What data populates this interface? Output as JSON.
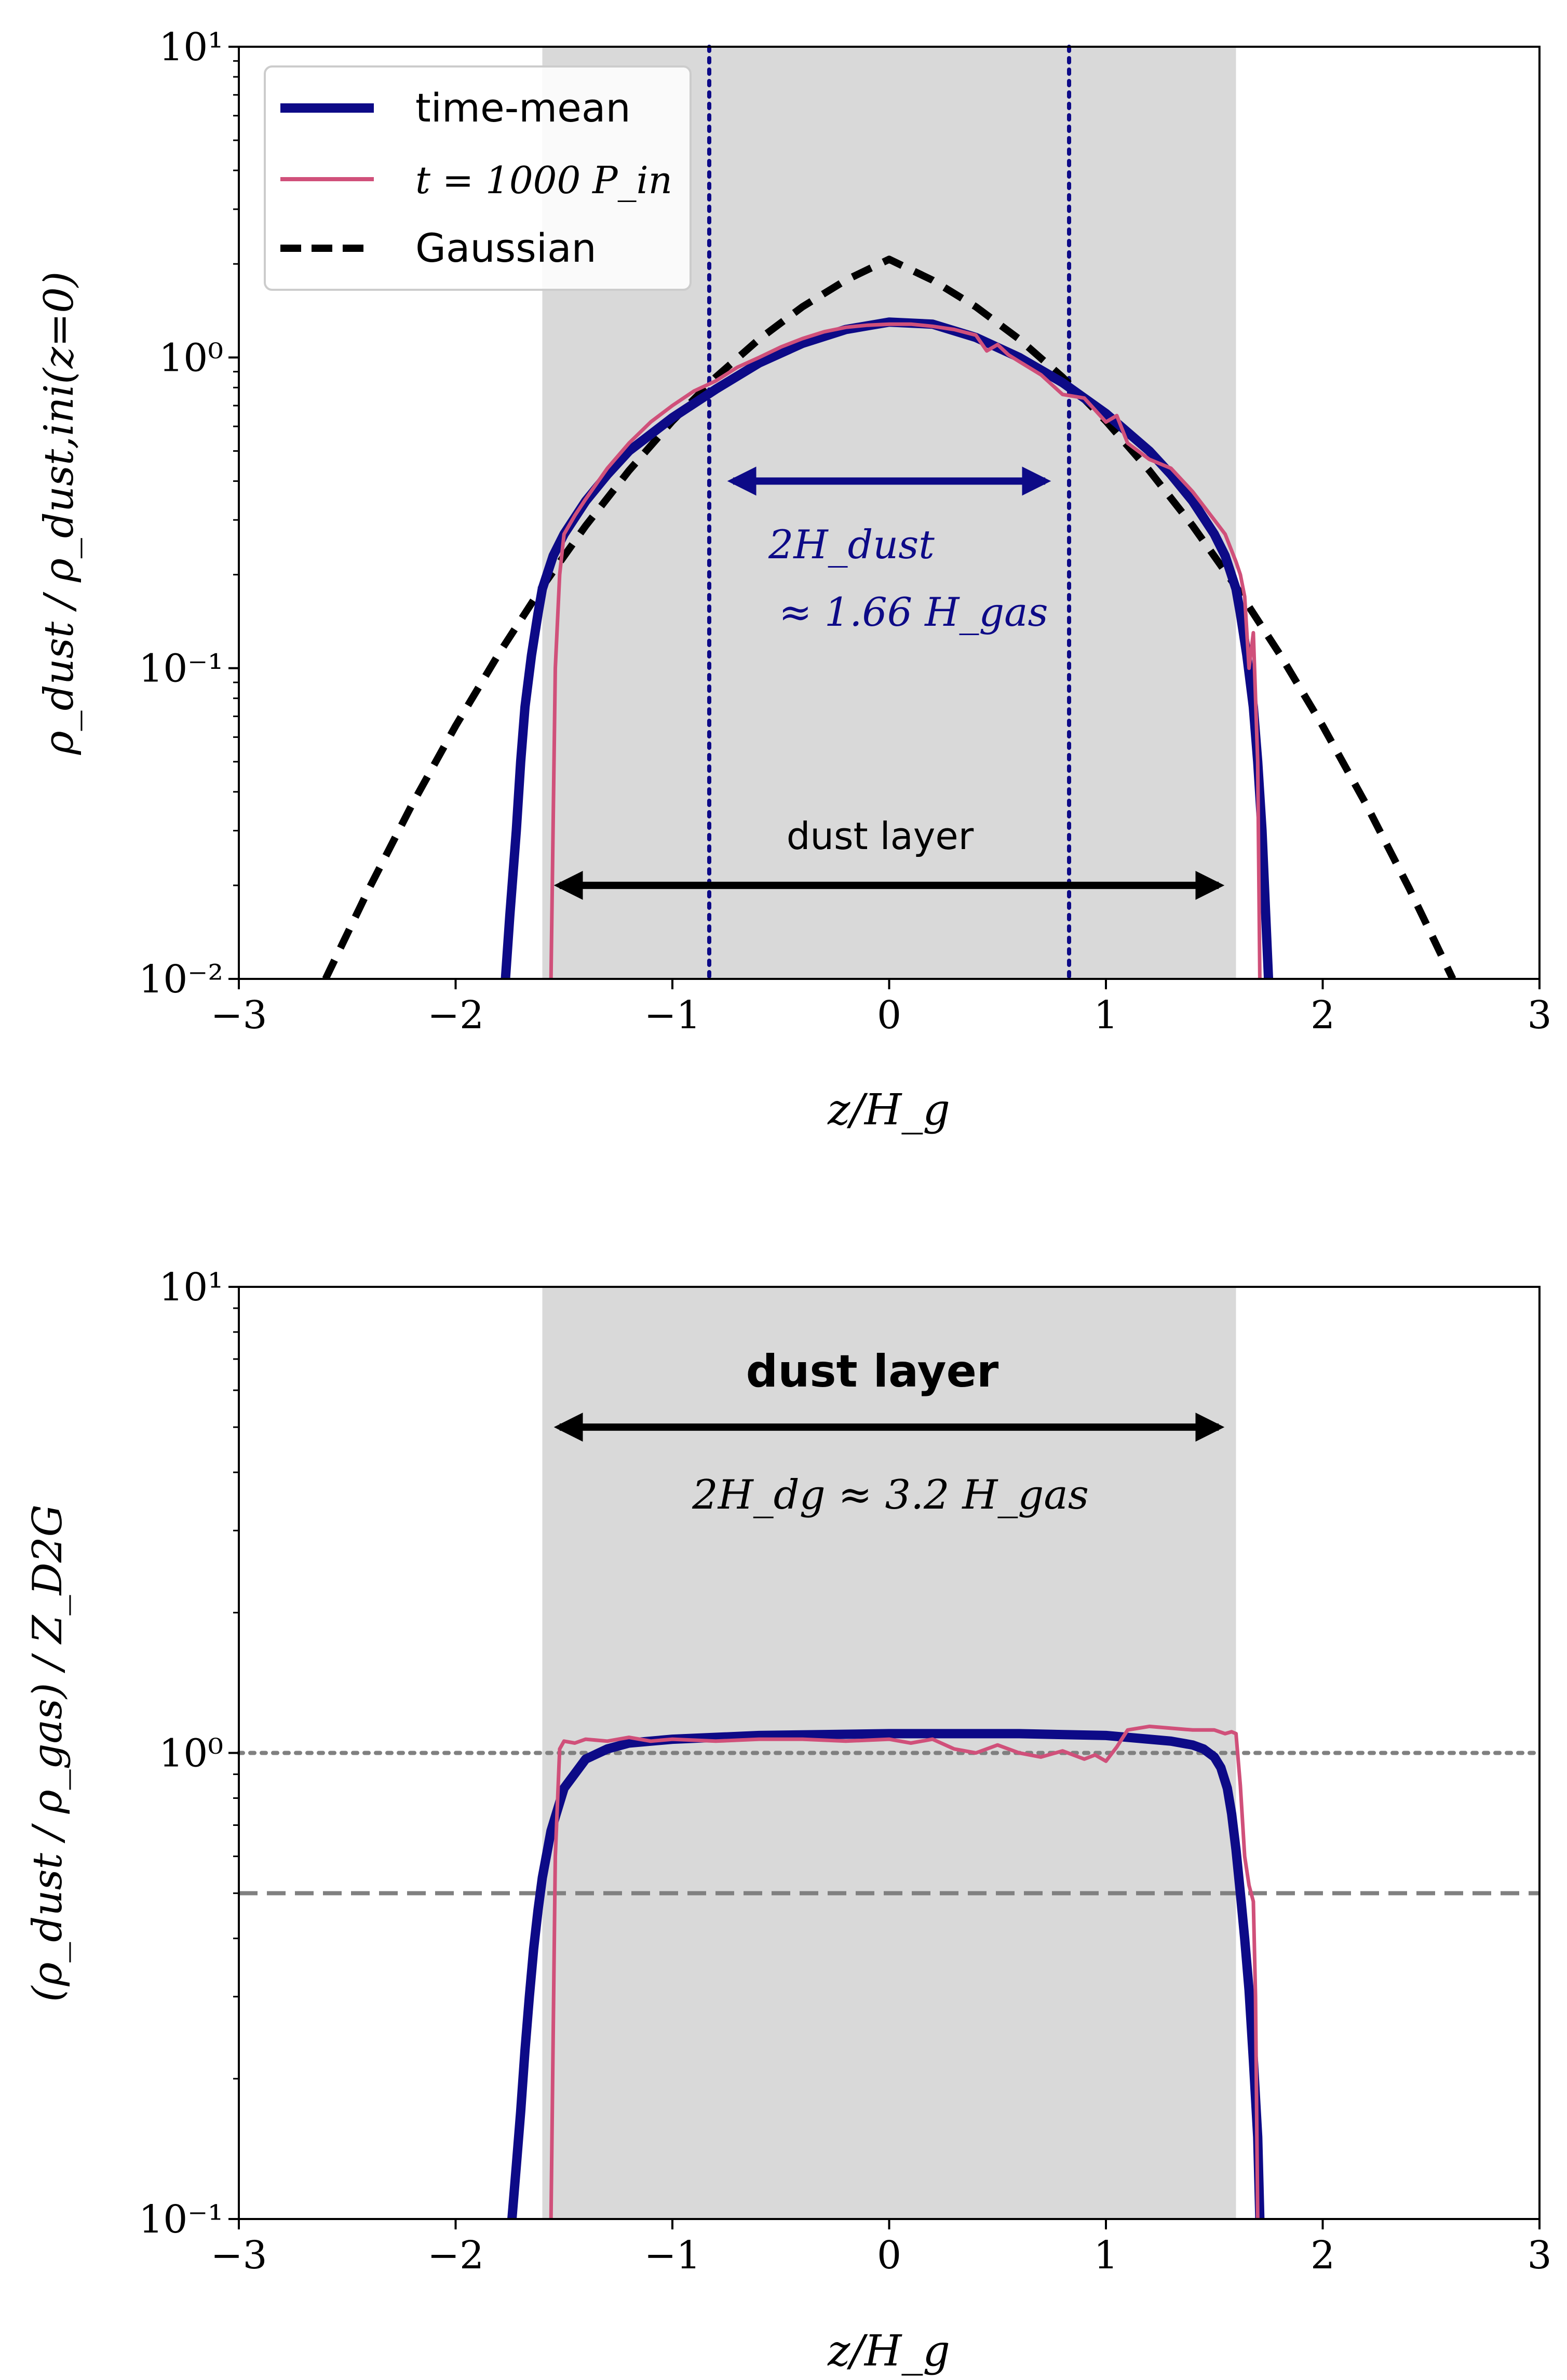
{
  "colors": {
    "time_mean": "#0d0a87",
    "snapshot": "#d0507a",
    "gaussian": "#000000",
    "dust_layer_fill": "#d9d9d9",
    "ref_line": "#808080"
  },
  "chart_data": [
    {
      "type": "line",
      "panel": "top",
      "xlabel": "z/H_g",
      "ylabel": "ρ_dust / ρ_dust,ini(z=0)",
      "xlim": [
        -3,
        3
      ],
      "ylim": [
        0.01,
        10
      ],
      "yscale": "log",
      "xticks": [
        -3,
        -2,
        -1,
        0,
        1,
        2,
        3
      ],
      "xtick_labels": [
        "−3",
        "−2",
        "−1",
        "0",
        "1",
        "2",
        "3"
      ],
      "yticks": [
        0.01,
        0.1,
        1,
        10
      ],
      "ytick_labels": [
        "10⁻²",
        "10⁻¹",
        "10⁰",
        "10¹"
      ],
      "legend_position": "top-left",
      "legend": [
        "time-mean",
        "t = 1000 P_in",
        "Gaussian"
      ],
      "shaded_region": [
        -1.6,
        1.6
      ],
      "vlines": [
        -0.83,
        0.83
      ],
      "annotations": {
        "h_dust_line1": "2H_dust",
        "h_dust_line2": "≈ 1.66 H_gas",
        "dust_layer": "dust layer"
      },
      "series": [
        {
          "name": "time-mean",
          "x": [
            -1.77,
            -1.75,
            -1.72,
            -1.7,
            -1.68,
            -1.65,
            -1.62,
            -1.6,
            -1.55,
            -1.5,
            -1.4,
            -1.3,
            -1.2,
            -1.0,
            -0.8,
            -0.6,
            -0.4,
            -0.2,
            0.0,
            0.2,
            0.4,
            0.6,
            0.8,
            1.0,
            1.2,
            1.3,
            1.4,
            1.5,
            1.55,
            1.6,
            1.62,
            1.65,
            1.68,
            1.7,
            1.72,
            1.75
          ],
          "y": [
            0.01,
            0.016,
            0.03,
            0.05,
            0.075,
            0.11,
            0.15,
            0.18,
            0.23,
            0.27,
            0.345,
            0.42,
            0.5,
            0.64,
            0.79,
            0.96,
            1.11,
            1.23,
            1.3,
            1.28,
            1.16,
            1.0,
            0.83,
            0.66,
            0.5,
            0.42,
            0.345,
            0.27,
            0.23,
            0.18,
            0.15,
            0.11,
            0.075,
            0.05,
            0.03,
            0.01
          ]
        },
        {
          "name": "t = 1000 P_in",
          "x": [
            -1.56,
            -1.54,
            -1.52,
            -1.5,
            -1.45,
            -1.4,
            -1.3,
            -1.2,
            -1.1,
            -1.0,
            -0.9,
            -0.8,
            -0.7,
            -0.6,
            -0.5,
            -0.4,
            -0.3,
            -0.2,
            -0.1,
            0.0,
            0.1,
            0.2,
            0.3,
            0.4,
            0.45,
            0.5,
            0.55,
            0.6,
            0.7,
            0.8,
            0.9,
            1.0,
            1.05,
            1.1,
            1.2,
            1.3,
            1.4,
            1.5,
            1.55,
            1.6,
            1.62,
            1.64,
            1.66,
            1.68,
            1.7,
            1.71
          ],
          "y": [
            0.01,
            0.1,
            0.2,
            0.27,
            0.31,
            0.35,
            0.44,
            0.53,
            0.62,
            0.7,
            0.78,
            0.84,
            0.93,
            1.0,
            1.08,
            1.15,
            1.21,
            1.25,
            1.27,
            1.28,
            1.28,
            1.26,
            1.23,
            1.18,
            1.05,
            1.1,
            1.02,
            0.97,
            0.88,
            0.76,
            0.74,
            0.62,
            0.65,
            0.53,
            0.47,
            0.44,
            0.37,
            0.3,
            0.27,
            0.22,
            0.2,
            0.17,
            0.1,
            0.13,
            0.05,
            0.01
          ]
        },
        {
          "name": "Gaussian",
          "x": [
            -2.6,
            -2.4,
            -2.2,
            -2.0,
            -1.8,
            -1.6,
            -1.4,
            -1.2,
            -1.0,
            -0.8,
            -0.6,
            -0.4,
            -0.2,
            0.0,
            0.2,
            0.4,
            0.6,
            0.8,
            1.0,
            1.2,
            1.4,
            1.6,
            1.8,
            2.0,
            2.2,
            2.4,
            2.6
          ],
          "y": [
            0.01,
            0.0195,
            0.0365,
            0.0652,
            0.1115,
            0.1829,
            0.2873,
            0.4326,
            0.6242,
            0.8637,
            1.1453,
            1.4557,
            1.7729,
            2.07,
            1.7729,
            1.4557,
            1.1453,
            0.8637,
            0.6242,
            0.4326,
            0.2873,
            0.1829,
            0.1115,
            0.0652,
            0.0365,
            0.0195,
            0.01
          ]
        }
      ]
    },
    {
      "type": "line",
      "panel": "bottom",
      "xlabel": "z/H_g",
      "ylabel": "(ρ_dust / ρ_gas) / Z_D2G",
      "xlim": [
        -3,
        3
      ],
      "ylim": [
        0.1,
        10
      ],
      "yscale": "log",
      "xticks": [
        -3,
        -2,
        -1,
        0,
        1,
        2,
        3
      ],
      "xtick_labels": [
        "−3",
        "−2",
        "−1",
        "0",
        "1",
        "2",
        "3"
      ],
      "yticks": [
        0.1,
        1,
        10
      ],
      "ytick_labels": [
        "10⁻¹",
        "10⁰",
        "10¹"
      ],
      "shaded_region": [
        -1.6,
        1.6
      ],
      "hlines": [
        {
          "y": 1.0,
          "style": "dotted"
        },
        {
          "y": 0.5,
          "style": "dashed"
        }
      ],
      "annotations": {
        "dust_layer": "dust layer",
        "h_dg": "2H_dg ≈ 3.2 H_gas"
      },
      "series": [
        {
          "name": "time-mean",
          "x": [
            -1.74,
            -1.72,
            -1.7,
            -1.68,
            -1.66,
            -1.64,
            -1.62,
            -1.6,
            -1.56,
            -1.5,
            -1.4,
            -1.3,
            -1.2,
            -1.0,
            -0.6,
            0.0,
            0.6,
            1.0,
            1.2,
            1.3,
            1.4,
            1.45,
            1.5,
            1.53,
            1.56,
            1.58,
            1.6,
            1.62,
            1.64,
            1.66,
            1.68,
            1.7,
            1.71
          ],
          "y": [
            0.1,
            0.13,
            0.17,
            0.23,
            0.3,
            0.38,
            0.46,
            0.54,
            0.68,
            0.84,
            0.97,
            1.02,
            1.05,
            1.07,
            1.09,
            1.1,
            1.1,
            1.09,
            1.07,
            1.06,
            1.04,
            1.02,
            0.98,
            0.93,
            0.84,
            0.74,
            0.62,
            0.5,
            0.4,
            0.31,
            0.22,
            0.15,
            0.1
          ]
        },
        {
          "name": "t = 1000 P_in",
          "x": [
            -1.56,
            -1.54,
            -1.52,
            -1.5,
            -1.45,
            -1.4,
            -1.3,
            -1.2,
            -1.1,
            -1.0,
            -0.8,
            -0.6,
            -0.4,
            -0.2,
            0.0,
            0.1,
            0.2,
            0.3,
            0.4,
            0.5,
            0.6,
            0.7,
            0.8,
            0.9,
            0.95,
            1.0,
            1.05,
            1.1,
            1.2,
            1.3,
            1.4,
            1.5,
            1.55,
            1.58,
            1.6,
            1.62,
            1.64,
            1.66,
            1.68,
            1.69,
            1.7
          ],
          "y": [
            0.1,
            0.6,
            1.02,
            1.06,
            1.05,
            1.07,
            1.06,
            1.08,
            1.06,
            1.07,
            1.06,
            1.07,
            1.07,
            1.06,
            1.07,
            1.05,
            1.07,
            1.02,
            1.0,
            1.04,
            1.0,
            0.98,
            1.01,
            0.97,
            0.99,
            0.96,
            1.03,
            1.12,
            1.14,
            1.13,
            1.12,
            1.12,
            1.1,
            1.11,
            1.1,
            0.85,
            0.6,
            0.52,
            0.48,
            0.3,
            0.1
          ]
        }
      ]
    }
  ]
}
